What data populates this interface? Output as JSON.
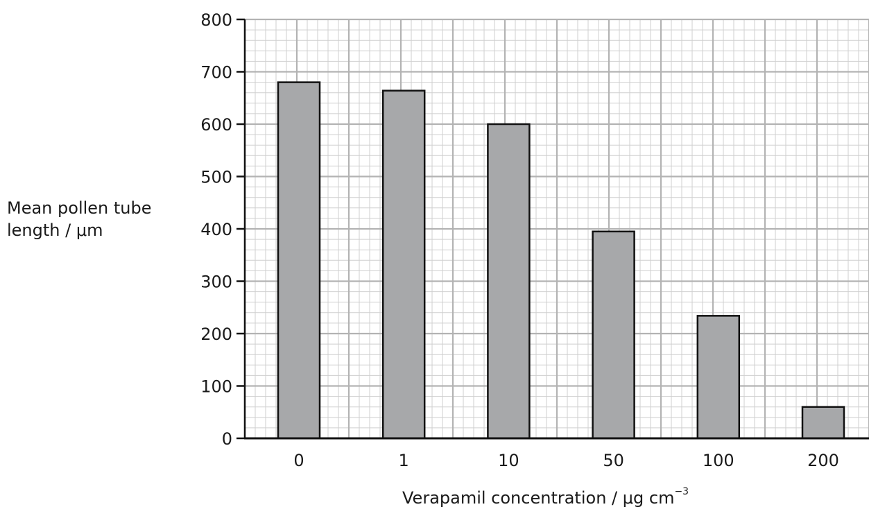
{
  "chart_data": {
    "type": "bar",
    "categories": [
      "0",
      "1",
      "10",
      "50",
      "100",
      "200"
    ],
    "values": [
      680,
      664,
      600,
      395,
      234,
      60
    ],
    "title": "",
    "ylabel_line1": "Mean pollen tube",
    "ylabel_line2": "length / μm",
    "xlabel_main": "Verapamil concentration / μg cm",
    "xlabel_exp": "−3",
    "ylim": [
      0,
      800
    ],
    "yticks": [
      0,
      100,
      200,
      300,
      400,
      500,
      600,
      700,
      800
    ],
    "ytick_labels": [
      "0",
      "100",
      "200",
      "300",
      "400",
      "500",
      "600",
      "700",
      "800"
    ],
    "grid": true,
    "colors": {
      "bar_fill": "#a7a8aa",
      "bar_stroke": "#111111",
      "grid_minor": "#cfcfcf",
      "grid_major": "#b3b3b3",
      "axis": "#111111"
    }
  }
}
